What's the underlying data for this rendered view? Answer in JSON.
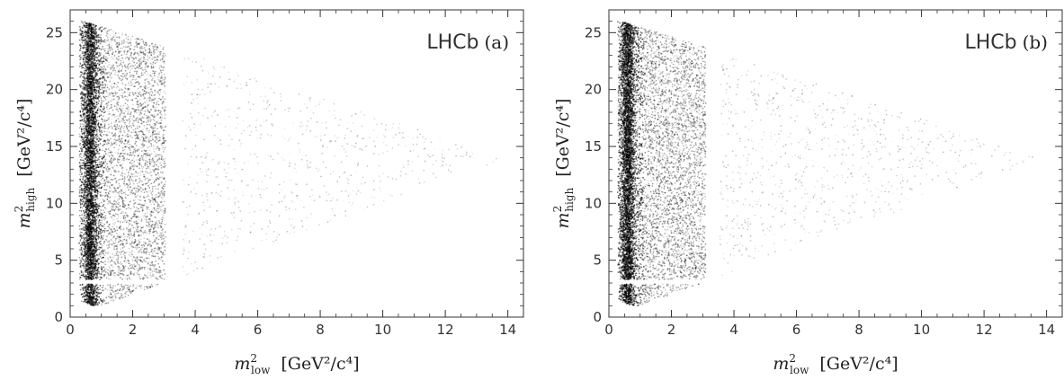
{
  "chart_data": [
    {
      "type": "scatter",
      "panel_tag": "(a)",
      "experiment": "LHCb",
      "xlabel_sym": "m",
      "xlabel_sub": "low",
      "xlabel_unit": "[GeV²/c⁴]",
      "ylabel_sym": "m",
      "ylabel_sub": "high",
      "ylabel_unit": "[GeV²/c⁴]",
      "xlim": [
        0,
        14.5
      ],
      "ylim": [
        0,
        27
      ],
      "xticks": [
        0,
        2,
        4,
        6,
        8,
        10,
        12,
        14
      ],
      "yticks": [
        0,
        5,
        10,
        15,
        20,
        25
      ],
      "point_color": "#000000",
      "n_points": 9000,
      "gap_x": [
        3.05,
        3.6
      ],
      "gap_y": [
        2.9,
        3.3
      ],
      "boundary": {
        "apex_x": 13.9,
        "apex_y": 13.9,
        "top_y": 26.3,
        "bottom_y": 1.0
      },
      "density_peak_x": 0.65
    },
    {
      "type": "scatter",
      "panel_tag": "(b)",
      "experiment": "LHCb",
      "xlabel_sym": "m",
      "xlabel_sub": "low",
      "xlabel_unit": "[GeV²/c⁴]",
      "ylabel_sym": "m",
      "ylabel_sub": "high",
      "ylabel_unit": "[GeV²/c⁴]",
      "xlim": [
        0,
        14.5
      ],
      "ylim": [
        0,
        27
      ],
      "xticks": [
        0,
        2,
        4,
        6,
        8,
        10,
        12,
        14
      ],
      "yticks": [
        0,
        5,
        10,
        15,
        20,
        25
      ],
      "point_color": "#000000",
      "n_points": 10000,
      "gap_x": [
        3.1,
        3.55
      ],
      "gap_y": [
        2.9,
        3.3
      ],
      "boundary": {
        "apex_x": 13.8,
        "apex_y": 13.9,
        "top_y": 26.3,
        "bottom_y": 1.0
      },
      "density_peak_x": 0.6
    }
  ]
}
